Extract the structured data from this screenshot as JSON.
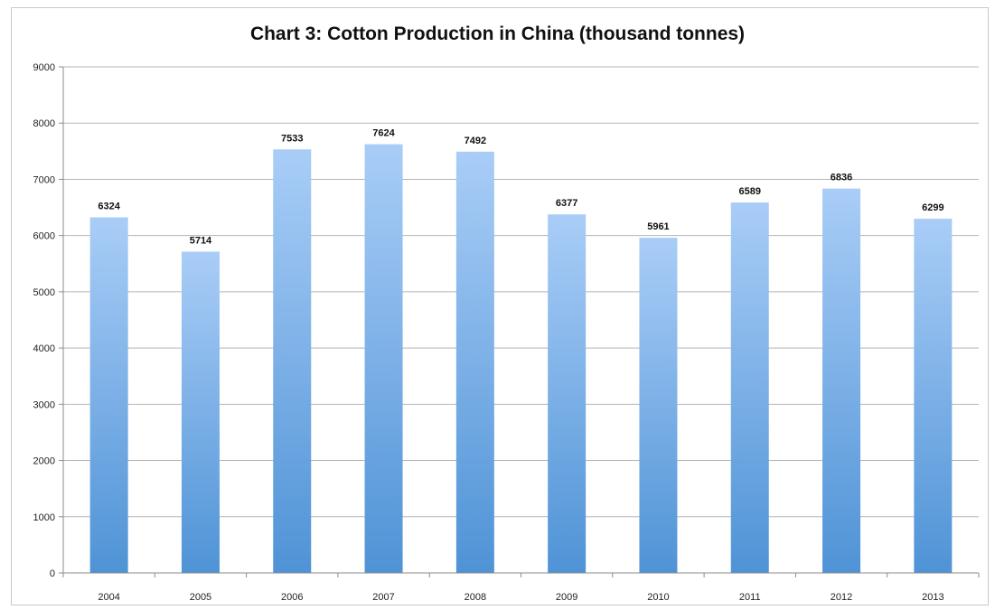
{
  "chart_data": {
    "type": "bar",
    "title": "Chart 3: Cotton Production in China (thousand tonnes)",
    "xlabel": "",
    "ylabel": "",
    "categories": [
      "2004",
      "2005",
      "2006",
      "2007",
      "2008",
      "2009",
      "2010",
      "2011",
      "2012",
      "2013"
    ],
    "values": [
      6324,
      5714,
      7533,
      7624,
      7492,
      6377,
      5961,
      6589,
      6836,
      6299
    ],
    "ylim": [
      0,
      9000
    ],
    "yticks": [
      0,
      1000,
      2000,
      3000,
      4000,
      5000,
      6000,
      7000,
      8000,
      9000
    ],
    "grid": true,
    "legend": "none",
    "colors": {
      "bar_top": "#a9cdf7",
      "bar_bottom": "#4f93d6",
      "grid": "#b5b5b5",
      "axis": "#8c8c8c"
    }
  }
}
